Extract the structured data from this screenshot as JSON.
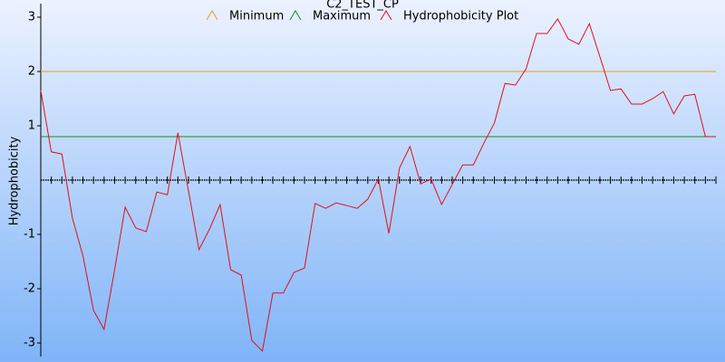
{
  "chart_data": {
    "type": "line",
    "title": "C2_TEST_CP",
    "y_label": "Hydrophobicity",
    "ylim": [
      -3.25,
      3.25
    ],
    "yticks": [
      -3,
      -2,
      -1,
      1,
      2,
      3
    ],
    "series": [
      {
        "name": "Minimum",
        "color": "#e0a020",
        "level": 2
      },
      {
        "name": "Maximum",
        "color": "#10901a",
        "level": 0.8
      },
      {
        "name": "Hydrophobicity Plot",
        "color": "#e0101a",
        "values": [
          1.65,
          0.52,
          0.48,
          -0.7,
          -1.4,
          -2.4,
          -2.75,
          -1.65,
          -0.5,
          -0.88,
          -0.95,
          -0.22,
          -0.27,
          0.87,
          -0.2,
          -1.28,
          -0.9,
          -0.45,
          -1.65,
          -1.75,
          -2.95,
          -3.15,
          -2.08,
          -2.08,
          -1.7,
          -1.62,
          -0.43,
          -0.52,
          -0.42,
          -0.47,
          -0.52,
          -0.35,
          0.02,
          -0.98,
          0.22,
          0.62,
          -0.07,
          0.02,
          -0.45,
          -0.08,
          0.28,
          0.28,
          0.68,
          1.05,
          1.78,
          1.75,
          2.05,
          2.7,
          2.7,
          2.97,
          2.6,
          2.5,
          2.88,
          2.27,
          1.65,
          1.68,
          1.4,
          1.4,
          1.5,
          1.63,
          1.22,
          1.55,
          1.58,
          0.8,
          0.8
        ]
      }
    ]
  }
}
